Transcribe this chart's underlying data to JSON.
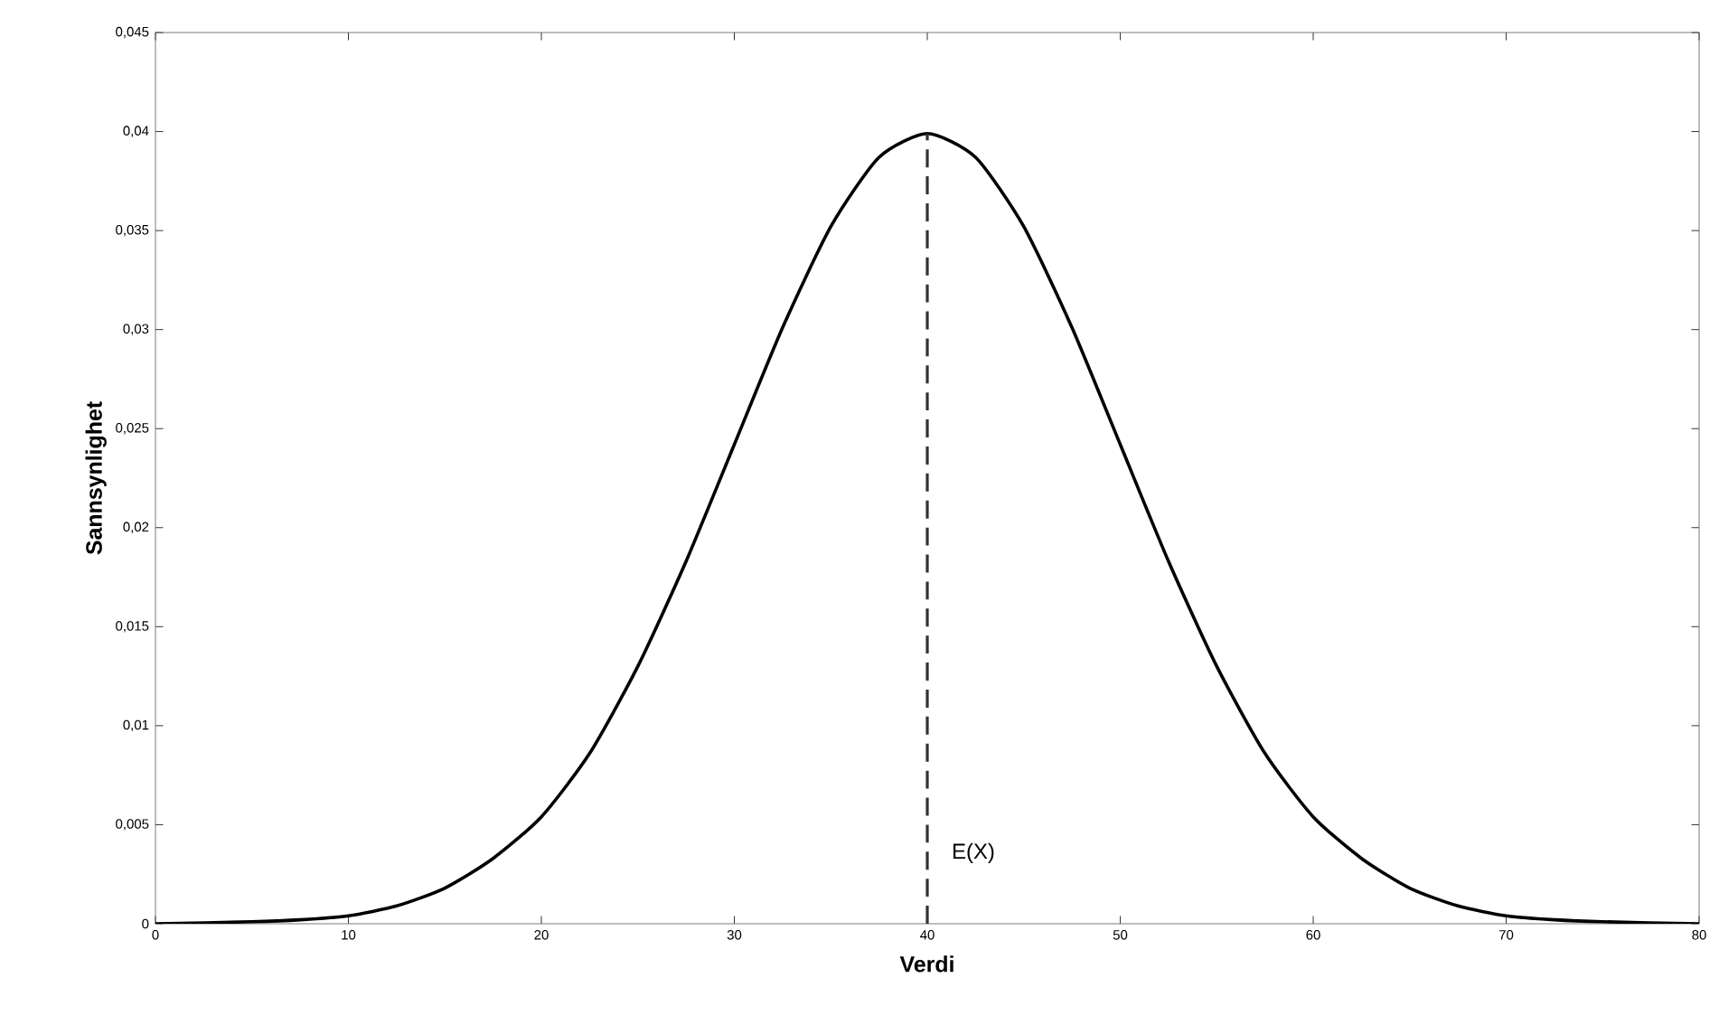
{
  "chart_data": {
    "type": "line",
    "xlabel": "Verdi",
    "ylabel": "Sannsynlighet",
    "xlim": [
      0,
      80
    ],
    "ylim": [
      0,
      0.045
    ],
    "xticks": [
      0,
      10,
      20,
      30,
      40,
      50,
      60,
      70,
      80
    ],
    "yticks": [
      0,
      {
        "value": 0.005,
        "label": "0,005"
      },
      {
        "value": 0.01,
        "label": "0,01"
      },
      {
        "value": 0.015,
        "label": "0,015"
      },
      {
        "value": 0.02,
        "label": "0,02"
      },
      {
        "value": 0.025,
        "label": "0,025"
      },
      {
        "value": 0.03,
        "label": "0,03"
      },
      {
        "value": 0.035,
        "label": "0,035"
      },
      {
        "value": 0.04,
        "label": "0,04"
      },
      {
        "value": 0.045,
        "label": "0,045"
      }
    ],
    "x": [
      0,
      5,
      7.5,
      10,
      12.5,
      15,
      17.5,
      20,
      22.5,
      25,
      27.5,
      30,
      32.5,
      35,
      37.5,
      40,
      42.5,
      45,
      47.5,
      50,
      52.5,
      55,
      57.5,
      60,
      62.5,
      65,
      67.5,
      70,
      72.5,
      75,
      80
    ],
    "series": [
      {
        "color": "#000000",
        "values": [
          0,
          0.0001,
          0.0002,
          0.0004,
          0.0009,
          0.0018,
          0.0033,
          0.0054,
          0.0086,
          0.013,
          0.0183,
          0.0242,
          0.0301,
          0.0352,
          0.0387,
          0.0399,
          0.0387,
          0.0352,
          0.0301,
          0.0242,
          0.0183,
          0.013,
          0.0086,
          0.0054,
          0.0033,
          0.0018,
          0.0009,
          0.0004,
          0.0002,
          0.0001,
          0
        ]
      }
    ],
    "ref_lines": [
      {
        "axis": "x",
        "value": 40,
        "label": "E(X)",
        "color": "#333333",
        "line_style": "dashed"
      }
    ],
    "grid": false,
    "marker": "none",
    "line_style": "solid"
  }
}
